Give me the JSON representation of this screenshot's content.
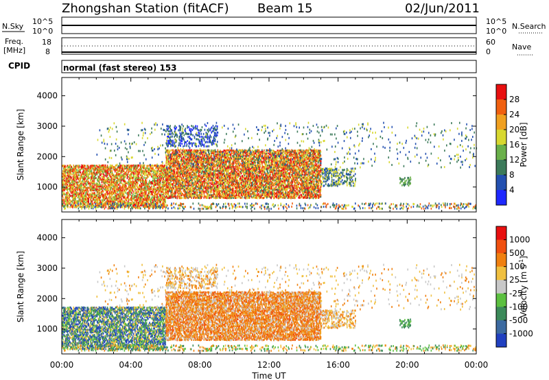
{
  "header": {
    "title": "Zhongshan Station (fitACF)",
    "beam": "Beam 15",
    "date": "02/Jun/2011"
  },
  "top_strips": {
    "nsky": {
      "label": "N.Sky",
      "ticks": [
        "10^5",
        "10^0"
      ]
    },
    "nsearch": {
      "label": "N.Search",
      "ticks": [
        "10^5",
        "10^0"
      ]
    },
    "freq": {
      "label_line1": "Freq.",
      "label_line2": "[MHz]",
      "ticks": [
        "18",
        "8"
      ]
    },
    "nave": {
      "label": "Nave",
      "ticks": [
        "60",
        "0"
      ]
    },
    "cpid": {
      "label": "CPID",
      "value": "normal (fast stereo) 153"
    }
  },
  "chart_data": [
    {
      "type": "heatmap",
      "title": "",
      "ylabel": "Slant Range [km]",
      "xlabel": "",
      "ylim": [
        180,
        4600
      ],
      "xlim": [
        0,
        24
      ],
      "y_ticks": [
        "1000",
        "2000",
        "3000",
        "4000"
      ],
      "x_ticks": [
        "00:00",
        "04:00",
        "08:00",
        "12:00",
        "16:00",
        "20:00",
        "00:00"
      ],
      "colorbar": {
        "label": "Power [dB]",
        "ticks": [
          "4",
          "8",
          "12",
          "16",
          "20",
          "24",
          "28"
        ],
        "colors": [
          "#1e28ff",
          "#2350b0",
          "#3c7a5a",
          "#6ab04a",
          "#d8d830",
          "#f0a020",
          "#f06010",
          "#e81010"
        ]
      },
      "grid": false
    },
    {
      "type": "heatmap",
      "title": "",
      "ylabel": "Slant Range [km]",
      "xlabel": "Time UT",
      "ylim": [
        180,
        4600
      ],
      "xlim": [
        0,
        24
      ],
      "y_ticks": [
        "1000",
        "2000",
        "3000",
        "4000"
      ],
      "x_ticks": [
        "00:00",
        "04:00",
        "08:00",
        "12:00",
        "16:00",
        "20:00",
        "00:00"
      ],
      "colorbar": {
        "label": "Velocity [m s",
        "label_sup": "-1",
        "label_end": "]",
        "ticks": [
          "1000",
          "500",
          "100",
          "25",
          "-25",
          "-100",
          "-500",
          "-1000"
        ],
        "colors": [
          "#2040c0",
          "#3c6aa0",
          "#3c8a5a",
          "#5cc040",
          "#c8c8c8",
          "#f0c040",
          "#f08010",
          "#f05010",
          "#e81010"
        ]
      },
      "grid": false
    }
  ],
  "colors": {
    "power_red": "#e81010",
    "power_orange": "#f06010",
    "power_yellow": "#d8d830",
    "vel_orange": "#f07a10",
    "vel_blue": "#2040c0",
    "vel_green": "#3c8a5a"
  }
}
